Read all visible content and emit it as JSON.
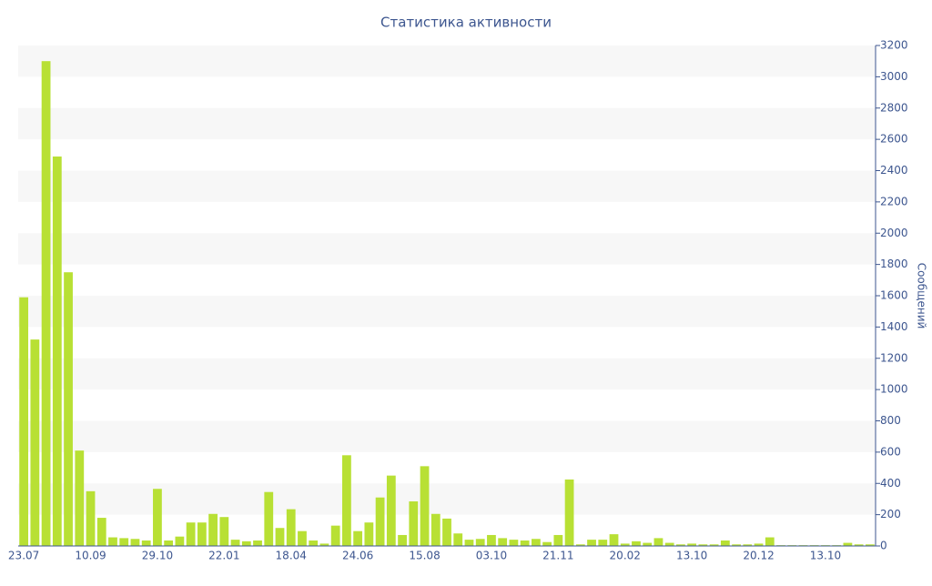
{
  "chart_data": {
    "type": "bar",
    "title": "Статистика активности",
    "y_label": "Сообщений",
    "categories": [
      "23.07",
      null,
      null,
      null,
      null,
      null,
      "10.09",
      null,
      null,
      null,
      null,
      null,
      "29.10",
      null,
      null,
      null,
      null,
      null,
      "22.01",
      null,
      null,
      null,
      null,
      null,
      "18.04",
      null,
      null,
      null,
      null,
      null,
      "24.06",
      null,
      null,
      null,
      null,
      null,
      "15.08",
      null,
      null,
      null,
      null,
      null,
      "03.10",
      null,
      null,
      null,
      null,
      null,
      "21.11",
      null,
      null,
      null,
      null,
      null,
      "20.02",
      null,
      null,
      null,
      null,
      null,
      "13.10",
      null,
      null,
      null,
      null,
      null,
      "20.12",
      null,
      null,
      null,
      null,
      null,
      "13.10",
      null,
      null,
      null,
      null
    ],
    "values": [
      1590,
      1320,
      3100,
      2490,
      1750,
      610,
      350,
      180,
      55,
      50,
      45,
      35,
      365,
      35,
      60,
      150,
      150,
      205,
      185,
      40,
      30,
      35,
      345,
      115,
      235,
      95,
      35,
      15,
      130,
      580,
      95,
      150,
      310,
      450,
      70,
      285,
      510,
      205,
      175,
      80,
      40,
      45,
      70,
      50,
      40,
      35,
      45,
      25,
      70,
      425,
      10,
      40,
      40,
      75,
      15,
      30,
      20,
      50,
      20,
      10,
      15,
      10,
      10,
      35,
      10,
      10,
      15,
      55,
      5,
      5,
      5,
      5,
      5,
      5,
      20,
      10,
      10
    ],
    "color": "#b8e034",
    "ylim": [
      0,
      3200
    ],
    "yticks": [
      0,
      200,
      400,
      600,
      800,
      1000,
      1200,
      1400,
      1600,
      1800,
      2000,
      2200,
      2400,
      2600,
      2800,
      3000,
      3200
    ],
    "grid": true
  }
}
